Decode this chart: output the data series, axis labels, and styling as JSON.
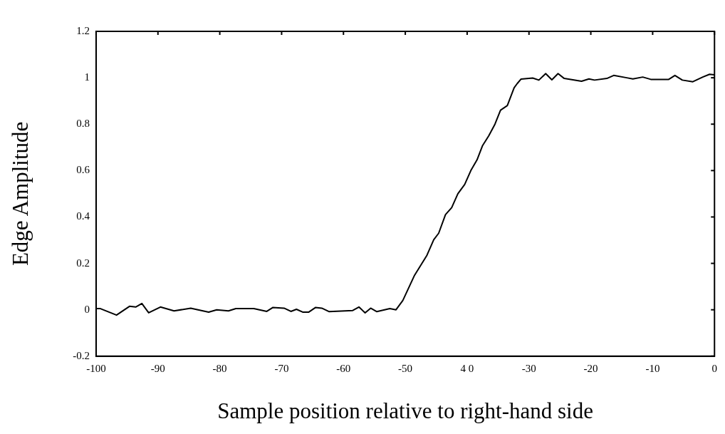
{
  "chart_data": {
    "type": "line",
    "xlabel": "Sample position relative to right-hand side",
    "ylabel": "Edge Amplitude",
    "xlim": [
      -100,
      0
    ],
    "xticks": [
      -100,
      -90,
      -80,
      -70,
      -60,
      -50,
      {
        "value": -40,
        "label": "4 0"
      },
      -30,
      -20,
      -10,
      0
    ],
    "ylim": [
      -0.2,
      1.2
    ],
    "yticks": [
      -0.2,
      0,
      0.2,
      0.4,
      0.6,
      0.8,
      1,
      1.2
    ],
    "grid": false,
    "legend": false,
    "marker": "none",
    "line_style": "solid",
    "series": [
      {
        "color": "#000000",
        "x": [
          -100,
          -99.3,
          -96.7,
          -94.6,
          -93.6,
          -92.6,
          -91.5,
          -89.6,
          -87.4,
          -84.7,
          -81.8,
          -80.5,
          -78.6,
          -77.4,
          -74.5,
          -72.4,
          -71.4,
          -69.6,
          -68.5,
          -67.6,
          -66.6,
          -65.6,
          -64.5,
          -63.5,
          -62.3,
          -58.5,
          -57.5,
          -56.5,
          -55.6,
          -54.6,
          -52.5,
          -51.5,
          -50.4,
          -48.5,
          -46.5,
          -45.4,
          -44.6,
          -43.5,
          -42.5,
          -41.5,
          -40.4,
          -39.4,
          -38.4,
          -37.5,
          -36.5,
          -35.5,
          -34.6,
          -33.5,
          -32.4,
          -31.9,
          -31.3,
          -29.4,
          -28.4,
          -27.3,
          -26.3,
          -25.3,
          -24.3,
          -21.5,
          -20.3,
          -19.4,
          -17.4,
          -16.3,
          -14.2,
          -13.2,
          -11.6,
          -10.3,
          -7.4,
          -6.4,
          -5.2,
          -3.5,
          -1.9,
          -0.8,
          0
        ],
        "values": [
          0.005,
          0.005,
          -0.023,
          0.015,
          0.012,
          0.027,
          -0.013,
          0.012,
          -0.005,
          0.007,
          -0.01,
          0,
          -0.005,
          0.005,
          0.005,
          -0.007,
          0.01,
          0.007,
          -0.007,
          0.002,
          -0.01,
          -0.01,
          0.01,
          0.007,
          -0.008,
          -0.003,
          0.012,
          -0.013,
          0.007,
          -0.008,
          0.005,
          0,
          0.04,
          0.149,
          0.235,
          0.302,
          0.33,
          0.41,
          0.44,
          0.5,
          0.54,
          0.6,
          0.646,
          0.708,
          0.75,
          0.8,
          0.86,
          0.88,
          0.957,
          0.975,
          0.994,
          0.999,
          0.99,
          1.018,
          0.991,
          1.018,
          0.997,
          0.985,
          0.995,
          0.99,
          0.997,
          1.01,
          1,
          0.995,
          1.003,
          0.993,
          0.993,
          1.01,
          0.99,
          0.983,
          1.003,
          1.015,
          1.013
        ]
      }
    ]
  }
}
